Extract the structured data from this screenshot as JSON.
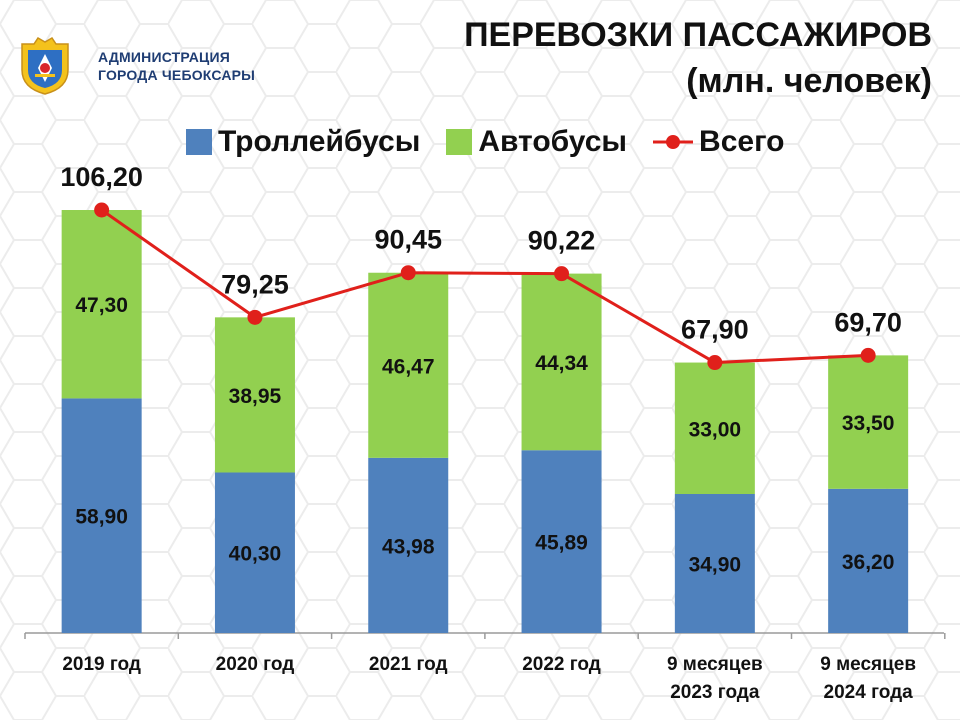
{
  "header": {
    "org_line1": "АДМИНИСТРАЦИЯ",
    "org_line2": "ГОРОДА ЧЕБОКСАРЫ",
    "title_line1": "ПЕРЕВОЗКИ ПАССАЖИРОВ",
    "title_line2": "(млн. человек)"
  },
  "colors": {
    "trolleybus": "#4f81bd",
    "bus": "#92d050",
    "total_line": "#e0201b",
    "axis": "#9a9a9a"
  },
  "chart_data": {
    "type": "bar",
    "stacked": true,
    "categories": [
      [
        "2019 год"
      ],
      [
        "2020 год"
      ],
      [
        "2021 год"
      ],
      [
        "2022 год"
      ],
      [
        "9 месяцев",
        "2023 года"
      ],
      [
        "9 месяцев",
        "2024 года"
      ]
    ],
    "series": [
      {
        "name": "Троллейбусы",
        "values": [
          58.9,
          40.3,
          43.98,
          45.89,
          34.9,
          36.2
        ],
        "labels": [
          "58,90",
          "40,30",
          "43,98",
          "45,89",
          "34,90",
          "36,20"
        ]
      },
      {
        "name": "Автобусы",
        "values": [
          47.3,
          38.95,
          46.47,
          44.34,
          33.0,
          33.5
        ],
        "labels": [
          "47,30",
          "38,95",
          "46,47",
          "44,34",
          "33,00",
          "33,50"
        ]
      }
    ],
    "line": {
      "name": "Всего",
      "values": [
        106.2,
        79.25,
        90.45,
        90.22,
        67.9,
        69.7
      ],
      "labels": [
        "106,20",
        "79,25",
        "90,45",
        "90,22",
        "67,90",
        "69,70"
      ]
    },
    "ylim": [
      0,
      106.2
    ],
    "grid": false,
    "legend_position": "top"
  }
}
